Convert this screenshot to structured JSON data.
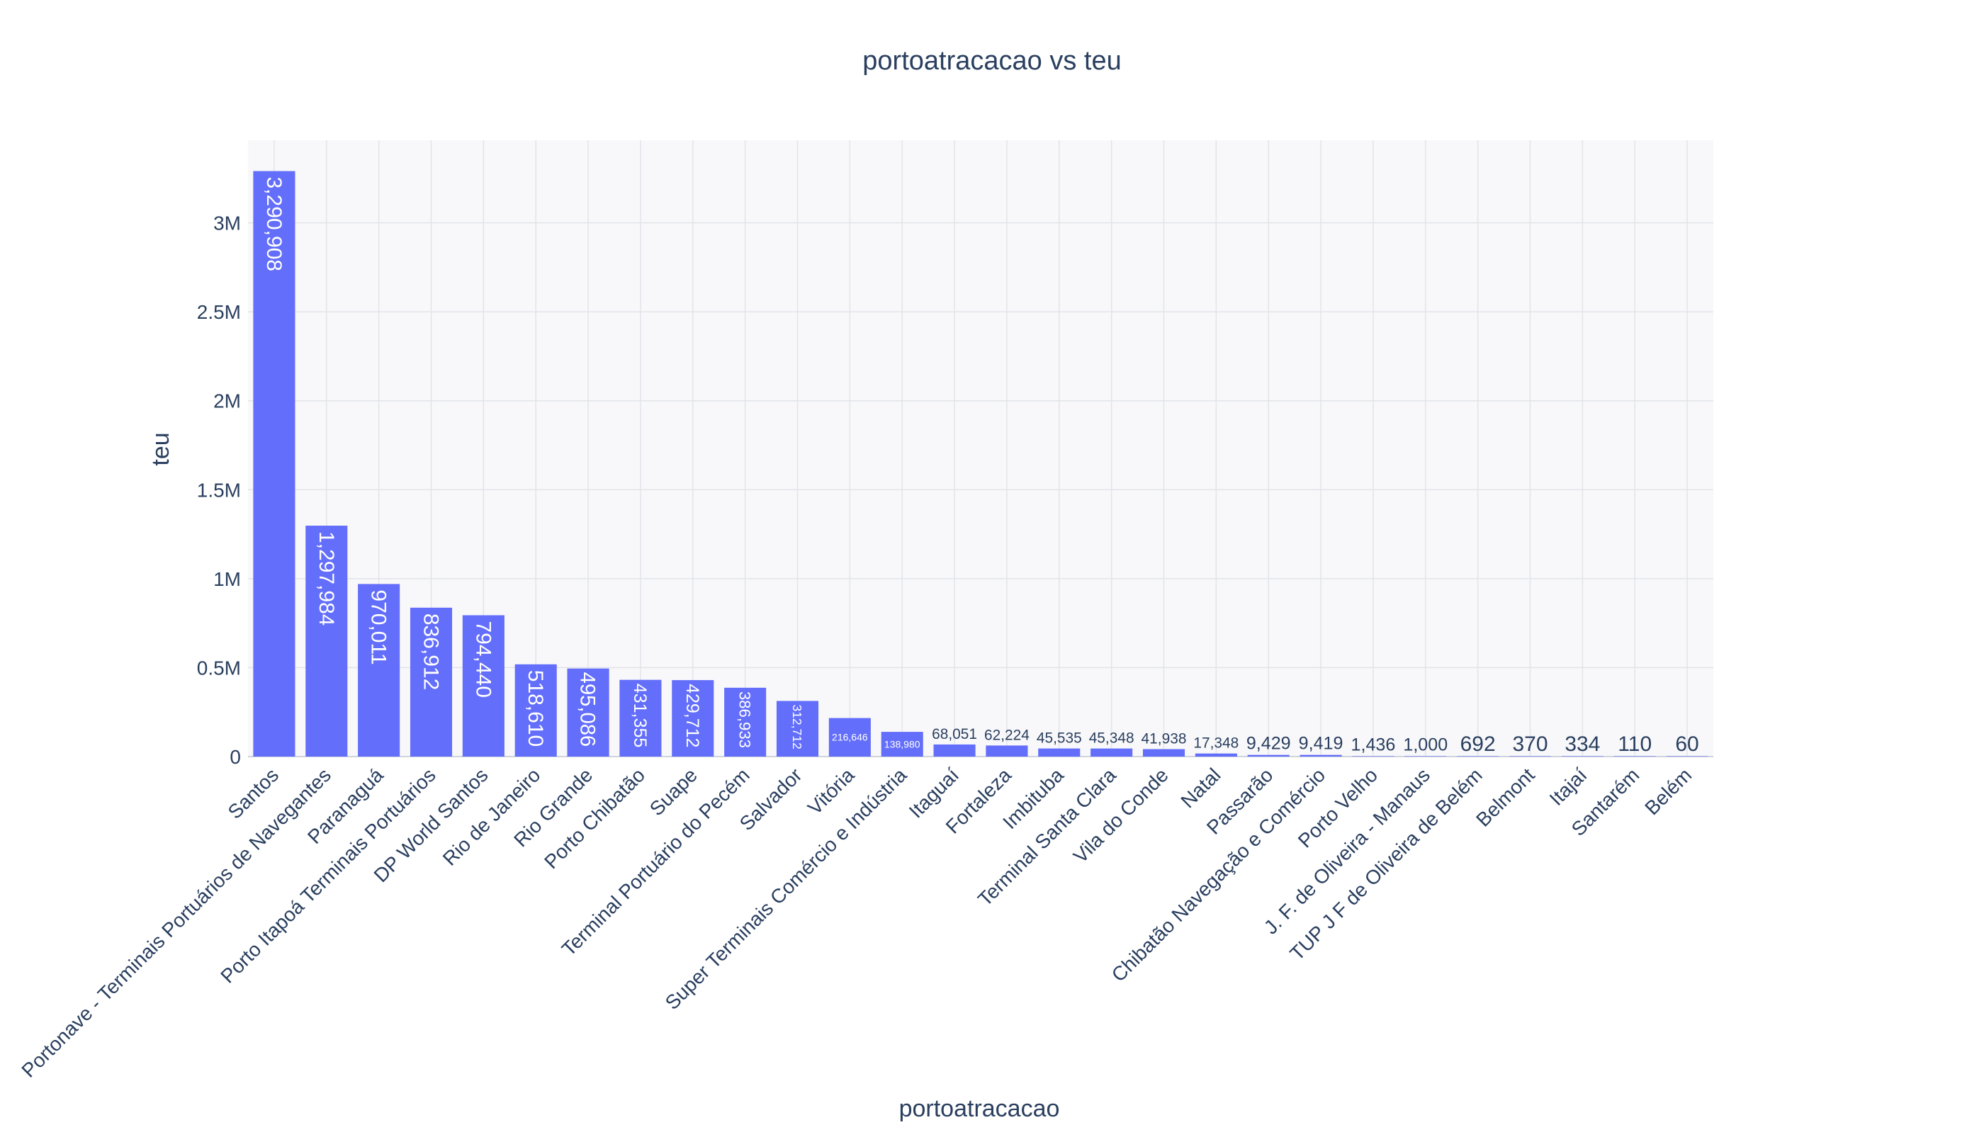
{
  "chart_data": {
    "type": "bar",
    "title": "portoatracacao vs teu",
    "xlabel": "portoatracacao",
    "ylabel": "teu",
    "ylim": [
      0,
      3464114
    ],
    "yticks": [
      {
        "value": 0,
        "label": "0"
      },
      {
        "value": 500000,
        "label": "0.5M"
      },
      {
        "value": 1000000,
        "label": "1M"
      },
      {
        "value": 1500000,
        "label": "1.5M"
      },
      {
        "value": 2000000,
        "label": "2M"
      },
      {
        "value": 2500000,
        "label": "2.5M"
      },
      {
        "value": 3000000,
        "label": "3M"
      }
    ],
    "grid": true,
    "colors": {
      "bar": "#636efa",
      "plot_bg": "#f8f8fa",
      "grid": "#e2e4ea",
      "text": "#2a3f5f"
    },
    "categories": [
      "Santos",
      "Portonave - Terminais Portuários de Navegantes",
      "Paranaguá",
      "Porto Itapoá Terminais Portuários",
      "DP World Santos",
      "Rio de Janeiro",
      "Rio Grande",
      "Porto Chibatão",
      "Suape",
      "Terminal Portuário do Pecém",
      "Salvador",
      "Vitória",
      "Super Terminais Comércio e Indústria",
      "Itaguaí",
      "Fortaleza",
      "Imbituba",
      "Terminal Santa Clara",
      "Vila do Conde",
      "Natal",
      "Passarão",
      "Chibatão Navegação e Comércio",
      "Porto Velho",
      "J. F. de Oliveira - Manaus",
      "TUP J F de Oliveira de Belém",
      "Belmont",
      "Itajaí",
      "Santarém",
      "Belém"
    ],
    "values": [
      3290908,
      1297984,
      970011,
      836912,
      794440,
      518610,
      495086,
      431355,
      429712,
      386933,
      312712,
      216646,
      138980,
      68051,
      62224,
      45535,
      45348,
      41938,
      17348,
      9429,
      9419,
      1436,
      1000,
      692,
      370,
      334,
      110,
      60
    ],
    "data_labels": [
      "3,290,908",
      "1,297,984",
      "970,011",
      "836,912",
      "794,440",
      "518,610",
      "495,086",
      "431,355",
      "429,712",
      "386,933",
      "312,712",
      "216,646",
      "138,980",
      "68,051",
      "62,224",
      "45,535",
      "45,348",
      "41,938",
      "17,348",
      "9,429",
      "9,419",
      "1,436",
      "1,000",
      "692",
      "370",
      "334",
      "110",
      "60"
    ]
  }
}
